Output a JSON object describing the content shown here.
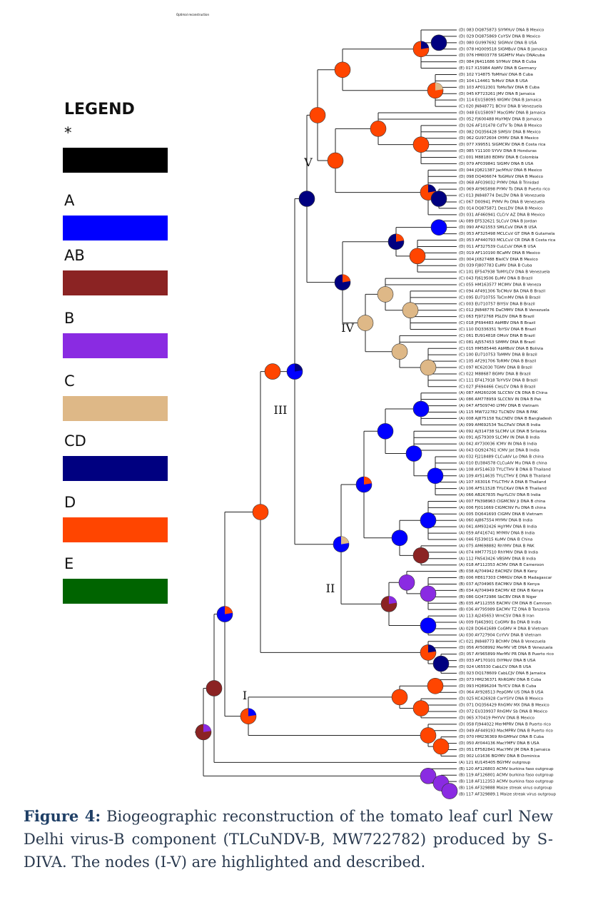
{
  "tree_title": "Optimal reconstruction",
  "legend": {
    "title": "LEGEND",
    "items": [
      {
        "label": "*",
        "color": "#000000"
      },
      {
        "label": "A",
        "color": "#0000ff"
      },
      {
        "label": "AB",
        "color": "#8b2323"
      },
      {
        "label": "B",
        "color": "#8a2be2"
      },
      {
        "label": "C",
        "color": "#deb887"
      },
      {
        "label": "CD",
        "color": "#000080"
      },
      {
        "label": "D",
        "color": "#ff4500"
      },
      {
        "label": "E",
        "color": "#006400"
      }
    ]
  },
  "node_labels": [
    "I",
    "II",
    "III",
    "IV",
    "V"
  ],
  "leaves": [
    "(D) 083 DQ875873 SIYMYuV DNA B Mexico",
    "(D) 029 DQ875869 CoYSV DNA B Mexico",
    "(D) 080 GU997692 SIGMoV DNA B USA",
    "(D) 078 HQ009518 SIGMBuV DNA B Jamaica",
    "(D) 076 HM003778 SIGMFIV Malv DNAcuba",
    "(D) 084 JN411686 SIYMoV DNA B Cuba",
    "(E) 017 X15984 AbMV DNA B Germany",
    "(D) 102 Y14875 ToMHaV DNA B Cuba",
    "(D) 104 L14461 ToMoV DNA B USA",
    "(D) 103 AF012301 ToMoTaV DNA B Cuba",
    "(D) 045 KF723261 JMV DNA B Jamaica",
    "(D) 114 EU158095 WGMV DNA B Jamaica",
    "(C) 020 JN848771 BChV DNA B Venezuela",
    "(D) 048 EU158097 MacGMV DNA B Jamaica",
    "(D) 052 FJ600488 MaYMJV DNA B Jamaica",
    "(D) 026 AF101478 CdTV To DNA B Mexico",
    "(D) 082 DQ356428 SiMSiV DNA B Mexico",
    "(D) 062 GU972604 OYMV DNA B Mexico",
    "(D) 077 X99551 SIGMCRV DNA B Costa rica",
    "(D) 085 Y11100 SYVV DNA B Honduras",
    "(C) 001 M88180 BDMV DNA B Colombia",
    "(D) 079 AF039841 SIGMV DNA B USA",
    "(D) 044 JQ821387 JacMYuV DNA B Mexico",
    "(D) 098 DQ406674 ToGMoV DNA B Mexico",
    "(D) 068 AF039032 PYMV DNA B Trinidad",
    "(D) 069 AY965898 PYMV To DNA B Puerto rico",
    "(C) 013 JN848774 DeLDV DNA B Venezuela",
    "(C) 067 D00941 PYMV Po DNA B Venezuela",
    "(D) 014 DQ875871 DesLDV DNA B Mexico",
    "(D) 031 AF460941 CLCrV AZ DNA B Mexico",
    "(A) 089 EF532621 SLCuV DNA B Jordan",
    "(D) 090 AF421553 SMLCuV DNA B USA",
    "(D) 053 AF325498 MCLCuV GT DNA B Gutamela",
    "(D) 053 AF440793 MCLCuV CR DNA B Costa rica",
    "(D) 011 AF327539 CuLCuV DNA B USA",
    "(D) 019 AF110190 BCaMV DNA B Mexico",
    "(D) 004 JX827488 BleICV DNA B Mexico",
    "(D) 039 FJ807783 EuMV DNA B Cuba",
    "(C) 101 EF547938 ToMYLCV DNA B Venezuela",
    "(C) 043 FJ619506 EuMV DNA B Brazil",
    "(C) 055 HM163577 MCIMV DNA B Veneza",
    "(C) 094 AF491306 ToCMoV BA DNA B Brazil",
    "(C) 095 EU710755 ToCmMV DNA B Brazil",
    "(C) 003 EU710757 BIYSV DNA B Brazil",
    "(C) 012 JN848776 DaCMMV DNA B Venezuela",
    "(C) 063 FJ972768 PSLDV DNA B Brazil",
    "(C) 018 JF694483 AbMBV DNA B Brazil",
    "(C) 110 DQ336351 ToYSV DNA B Brazil",
    "(C) 061 EU914818 OMoV DNA B Brazil",
    "(C) 081 AJ557453 SIMMV DNA B Brazil",
    "(C) 015 HM585446 AbMBoV DNA B Bolivia",
    "(C) 100 EU710753 ToMMV DNA B Brazil",
    "(C) 105 AF291706 ToRMV DNA B Brazil",
    "(C) 097 KC62030 TGMV DNA B Brazil",
    "(C) 022 M88687 BGMV DNA B Brazil",
    "(C) 111 EF417918 ToYVSV DNA B Brazil",
    "(C) 027 JF694466 CleLCV DNA B Brazil",
    "(A) 087 AM260206 SLCCNV CN DNA B China",
    "(A) 086 AM778959 SLCCNV IN DNA B Pak",
    "(A) 047 AF509740 LYMV DNA B Vietnam",
    "(A) 115 MW722782 TLCNDV DNA B PAK",
    "(A) 008 AJ875158 ToLCNDV DNA B Bangladesh",
    "(A) 099 AM692534 ToLCPalV DNA B India",
    "(A) 092 AJ314738 SLCMV LK DNA B Srilanka",
    "(A) 091 AJ579309 SLCMV IN DNA B India",
    "(A) 042 AY730036 ICMV IN DNA B India",
    "(A) 043 GQ924761 ICMV Jat DNA B India",
    "(A) 032 FJ218489 CLCuAlV Lo DNA B china",
    "(A) 010 EU384578 CLCuAlV Mu DNA B china",
    "(A) 108 AY514633 TYLCTHV B DNA B Thailand",
    "(A) 109 AY514635 TYLCTHV E DNA B Thailand",
    "(A) 107 X63016 TYLCTHV A DNA B Thailand",
    "(A) 106 AF511528 TYLCKaV DNA B Thailand",
    "(A) 066 AB267835 PepYLCIV DNA B India",
    "(A) 007 FN398963 CIGMCNV Ji DNA B china",
    "(A) 006 FJ011669 CIGMCNV Fu DNA B china",
    "(A) 005 DQ641693 CIGMV DNA B Vietnam",
    "(A) 060 AJ867554 MYMV DNA B India",
    "(A) 041 AM932426 HgYMV DNA B India",
    "(A) 059 AF416741 MYMIV DNA B India",
    "(A) 046 FJ539015 KuMV DNA B China",
    "(A) 075 AM698882 RhYMV DNA B PAK",
    "(A) 074 HM777510 RhYMIV DNA B India",
    "(A) 112 FN543426 VBSMV DNA B India",
    "(A) 018 AF112353 ACMV DNA B Cameroon",
    "(B) 038 AJ704942 EACMZV DNA B Keny",
    "(B) 006 HE617303 CMMGV DNA B Madagascar",
    "(B) 037 AJ704965 EACMKV DNA B Kenya",
    "(B) 034 AJ704949 EACMV KE DNA B Kenya",
    "(B) 086 GQ472986 SbCBV DNA B Niger",
    "(B) 035 AF112355 EACMV CM DNA B Camroon",
    "(B) 036 AY795989 EACMV TZ DNA B Tanzania",
    "(A) 113 AJ245653 WmCSV DNA B Iran",
    "(A) 009 FJ463901 CoGMV Ba DNA B India",
    "(A) 028 DQ641689 CoGMV H DNA B Vietnam",
    "(A) 030 AY727904 CoYVV DNA B Vietnam",
    "(C) 021 JN848773 BChMV DNA B Venezuela",
    "(D) 056 AY508992 MerMV VE DNA B Venezuela",
    "(D) 057 AY965899 MerMV PR DNA B Puerto rico",
    "(D) 033 AF170101 DiYMoV DNA B USA",
    "(D) 024 U65530 CabLCV DNA B USA",
    "(D) 023 DQ178609 CabLCJV DNA B Jamaica",
    "(D) 073 HM236371 RhRGMV DNA B Cuba",
    "(D) 093 HQ896204 TbYCV DNA B Cuba",
    "(D) 064 AY928513 PepGMV US DNA B USA",
    "(D) 025 KC426928 CarYSYV DNA B Mexico",
    "(D) 071 DQ356429 RhGMV MX DNA B Mexico",
    "(D) 072 EU339937 RhGMV Sb DNA B Mexico",
    "(D) 065 X70419 PHYVV DNA B Mexico",
    "(D) 058 FJ944022 MerMPRV DNA B Puerto rico",
    "(D) 049 AF449193 MacMPRV DNA B Puerto rico",
    "(D) 070 HM236369 RhGMHaV DNA B Cuba",
    "(D) 050 AY044136 MacYMFV DNA B USA",
    "(D) 051 EF582841 MacYMV JM DNA B Jamaica",
    "(D) 002 L01636 BGYMV DNA B Dominica",
    "(A) 121 KU145405 BGYMV outgroup",
    "(B) 120 AF126803 ACMV burkina faso outgroup",
    "(B) 119 AF126801 ACMV burkina faso outgroup",
    "(B) 118 AF112353 ACMV burkina faso outgroup",
    "(B) 116 AF329888 Maize streak virus outgroup",
    "(B) 117 AF329889.1 Maize streak virus outgroup"
  ],
  "caption": {
    "label": "Figure 4:",
    "text": "Biogeographic reconstruction of the tomato leaf curl New Delhi virus-B component (TLCuNDV-B, MW722782) produced by S-DIVA. The nodes (I-V) are highlighted and described."
  }
}
